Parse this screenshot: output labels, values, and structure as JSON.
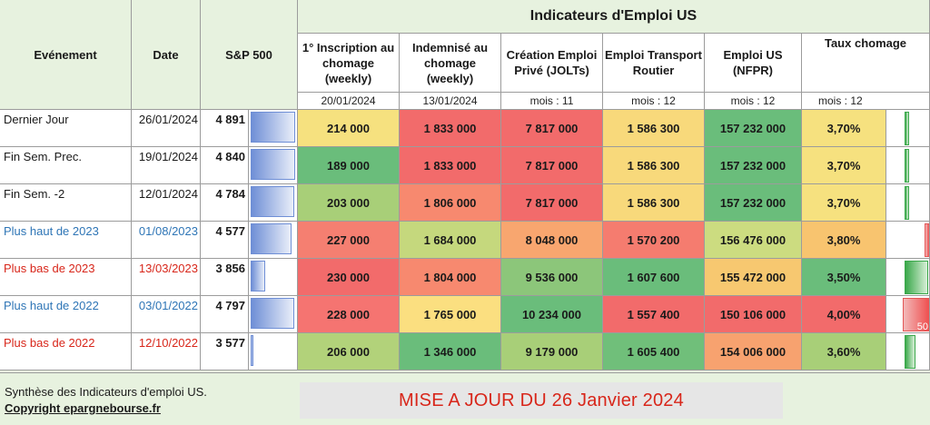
{
  "headers": {
    "evenement": "Evénement",
    "date": "Date",
    "sp500": "S&P 500",
    "indicators_title": "Indicateurs d'Emploi US",
    "columns": [
      {
        "label": "1° Inscription au chomage (weekly)",
        "sub": "20/01/2024"
      },
      {
        "label": "Indemnisé au chomage (weekly)",
        "sub": "13/01/2024"
      },
      {
        "label": "Création Emploi Privé (JOLTs)",
        "sub": "mois : 11"
      },
      {
        "label": "Emploi Transport Routier",
        "sub": "mois : 12"
      },
      {
        "label": "Emploi US (NFPR)",
        "sub": "mois : 12"
      },
      {
        "label": "Taux chomage",
        "sub": "mois : 12"
      }
    ]
  },
  "rows": [
    {
      "event": "Dernier Jour",
      "date": "26/01/2024",
      "sp": "4 891",
      "sp_level": 0.98,
      "v1": "214 000",
      "v2": "1 833 000",
      "v3": "7 817 000",
      "v4": "1 586 300",
      "v5": "157 232 000",
      "v6": "3,70%",
      "rate_bar": 0.15,
      "rate_dir": "green",
      "style": "normal"
    },
    {
      "event": "Fin Sem. Prec.",
      "date": "19/01/2024",
      "sp": "4 840",
      "sp_level": 0.97,
      "v1": "189 000",
      "v2": "1 833 000",
      "v3": "7 817 000",
      "v4": "1 586 300",
      "v5": "157 232 000",
      "v6": "3,70%",
      "rate_bar": 0.15,
      "rate_dir": "green",
      "style": "normal"
    },
    {
      "event": "Fin Sem. -2",
      "date": "12/01/2024",
      "sp": "4 784",
      "sp_level": 0.96,
      "v1": "203 000",
      "v2": "1 806 000",
      "v3": "7 817 000",
      "v4": "1 586 300",
      "v5": "157 232 000",
      "v6": "3,70%",
      "rate_bar": 0.15,
      "rate_dir": "green",
      "style": "normal"
    },
    {
      "event": "Plus haut de 2023",
      "date": "01/08/2023",
      "sp": "4 577",
      "sp_level": 0.9,
      "v1": "227 000",
      "v2": "1 684 000",
      "v3": "8 048 000",
      "v4": "1 570 200",
      "v5": "156 476 000",
      "v6": "3,80%",
      "rate_bar": 0.2,
      "rate_dir": "red",
      "style": "blue"
    },
    {
      "event": "Plus bas de 2023",
      "date": "13/03/2023",
      "sp": "3 856",
      "sp_level": 0.32,
      "v1": "230 000",
      "v2": "1 804 000",
      "v3": "9 536 000",
      "v4": "1 607 600",
      "v5": "155 472 000",
      "v6": "3,50%",
      "rate_bar": 0.85,
      "rate_dir": "green",
      "style": "red"
    },
    {
      "event": "Plus haut de 2022",
      "date": "03/01/2022",
      "sp": "4 797",
      "sp_level": 0.96,
      "v1": "228 000",
      "v2": "1 765 000",
      "v3": "10 234 000",
      "v4": "1 557 400",
      "v5": "150 106 000",
      "v6": "4,00%",
      "rate_bar": 1.0,
      "rate_dir": "red",
      "rate_label": "50",
      "style": "blue"
    },
    {
      "event": "Plus bas de 2022",
      "date": "12/10/2022",
      "sp": "3 577",
      "sp_level": 0.05,
      "v1": "206 000",
      "v2": "1 346 000",
      "v3": "9 179 000",
      "v4": "1 605 400",
      "v5": "154 006 000",
      "v6": "3,60%",
      "rate_bar": 0.4,
      "rate_dir": "green",
      "style": "red"
    }
  ],
  "colors": {
    "grid": [
      [
        "#f6e17f",
        "#f26b6b",
        "#f26b6b",
        "#f8d97b",
        "#6abd7b",
        "#f6e17f"
      ],
      [
        "#6abd7b",
        "#f26b6b",
        "#f26b6b",
        "#f8d97b",
        "#6abd7b",
        "#f6e17f"
      ],
      [
        "#a8cf78",
        "#f7896f",
        "#f26b6b",
        "#f8d97b",
        "#6abd7b",
        "#f6e17f"
      ],
      [
        "#f57f71",
        "#c5d87d",
        "#f8a66f",
        "#f57c6f",
        "#ccdc80",
        "#f8c46f"
      ],
      [
        "#f26b6b",
        "#f7896f",
        "#8cc67a",
        "#6abd7b",
        "#f7c870",
        "#6abd7b"
      ],
      [
        "#f57471",
        "#fbdf80",
        "#6abd7b",
        "#f26b6b",
        "#f26b6b",
        "#f26b6b"
      ],
      [
        "#b2d27a",
        "#6abd7b",
        "#a8cf78",
        "#70bf7a",
        "#f7a26f",
        "#a8cf78"
      ]
    ]
  },
  "footer": {
    "synthese": "Synthèse des Indicateurs d'emploi US.",
    "copyright": "Copyright epargnebourse.fr",
    "mise_a_jour": "MISE A JOUR DU 26 Janvier 2024"
  }
}
